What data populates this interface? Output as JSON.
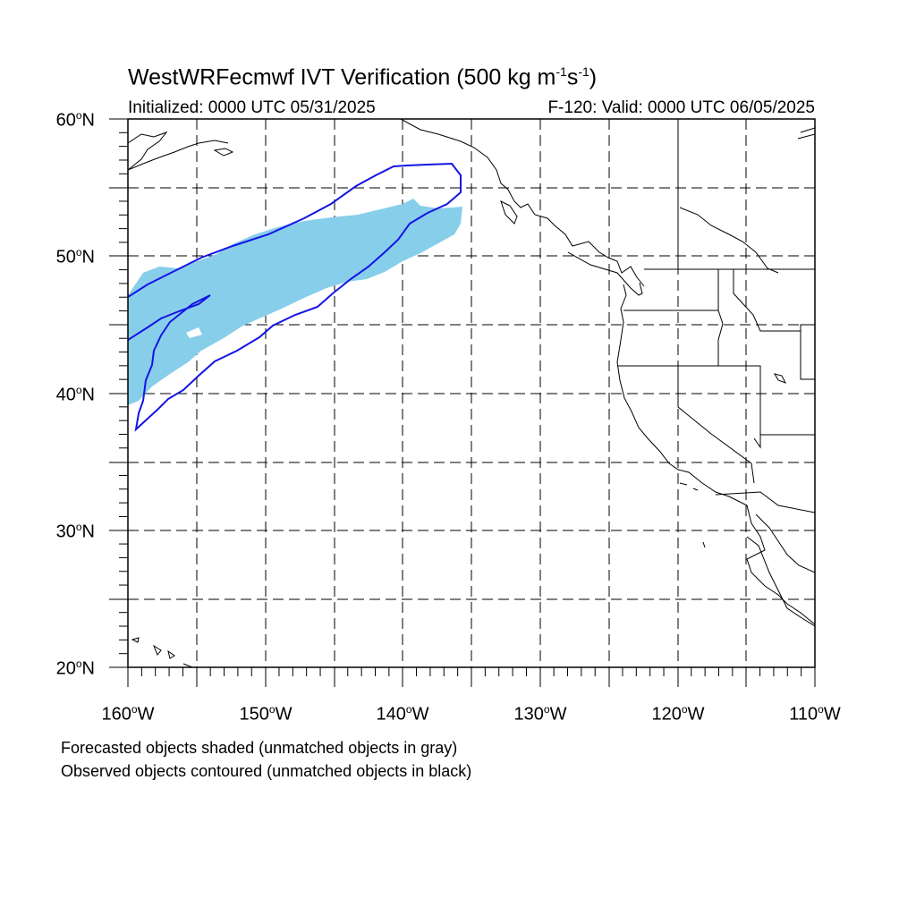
{
  "title": {
    "main": "WestWRFecmwf IVT Verification (500 kg m",
    "exp1": "-1",
    "mid": "s",
    "exp2": "-1",
    "end": ")"
  },
  "subtitle_left": "Initialized: 0000 UTC 05/31/2025",
  "subtitle_right": "F-120: Valid: 0000 UTC 06/05/2025",
  "lat_labels": [
    {
      "deg": "60",
      "suffix": "N"
    },
    {
      "deg": "50",
      "suffix": "N"
    },
    {
      "deg": "40",
      "suffix": "N"
    },
    {
      "deg": "30",
      "suffix": "N"
    },
    {
      "deg": "20",
      "suffix": "N"
    }
  ],
  "lon_labels": [
    {
      "deg": "160",
      "suffix": "W"
    },
    {
      "deg": "150",
      "suffix": "W"
    },
    {
      "deg": "140",
      "suffix": "W"
    },
    {
      "deg": "130",
      "suffix": "W"
    },
    {
      "deg": "120",
      "suffix": "W"
    },
    {
      "deg": "110",
      "suffix": "W"
    }
  ],
  "map": {
    "lon_range": [
      -160,
      -110
    ],
    "lat_range": [
      20,
      60
    ],
    "gridline_interval_deg": 5,
    "colors": {
      "forecast_object": "#87ceeb",
      "observed_contour": "#1414e6",
      "coastline": "#000000",
      "gridline": "#000000"
    }
  },
  "notes": [
    "Forecasted objects shaded (unmatched objects in gray)",
    "Observed objects contoured (unmatched objects in black)"
  ]
}
